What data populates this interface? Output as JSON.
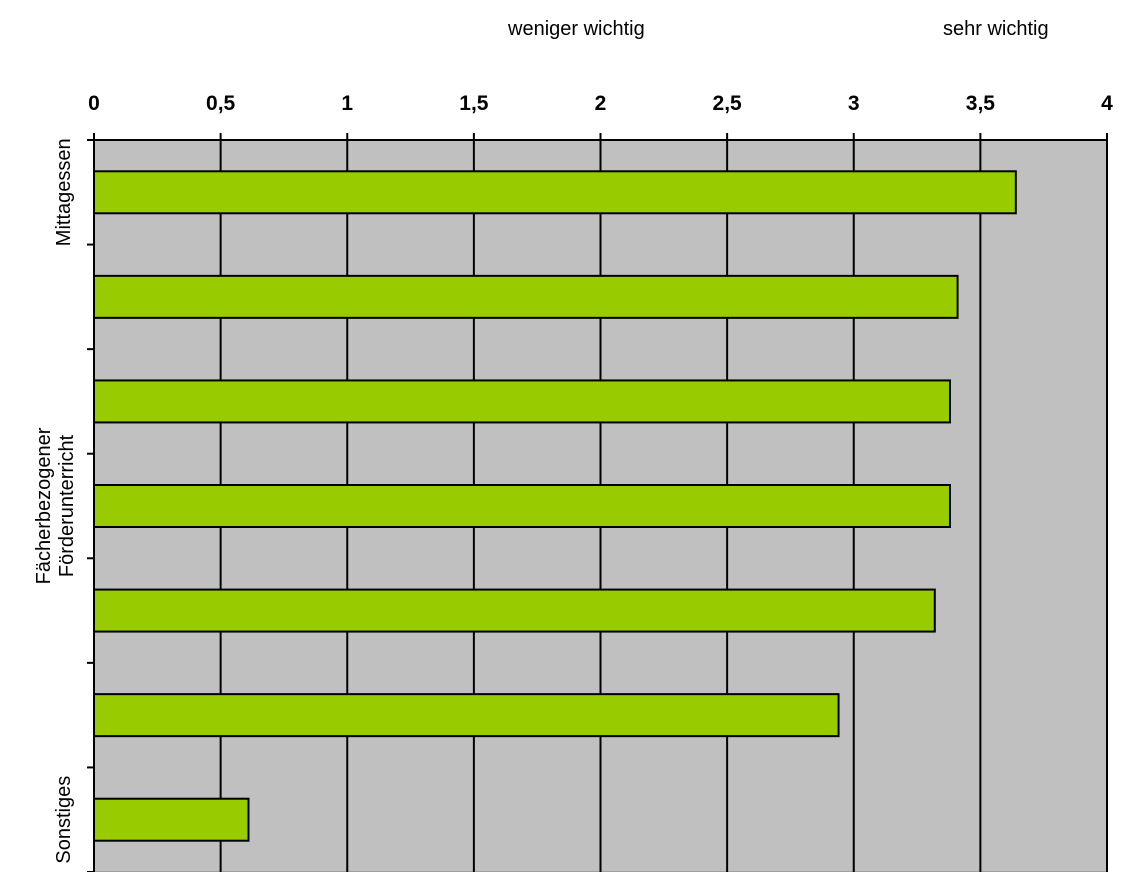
{
  "annotations": {
    "left": "weniger wichtig",
    "right": "sehr wichtig"
  },
  "chart_data": {
    "type": "bar",
    "orientation": "horizontal",
    "xlim": [
      0,
      4
    ],
    "x_ticks": [
      0,
      0.5,
      1,
      1.5,
      2,
      2.5,
      3,
      3.5,
      4
    ],
    "x_tick_labels": [
      "0",
      "0,5",
      "1",
      "1,5",
      "2",
      "2,5",
      "3",
      "3,5",
      "4"
    ],
    "x_axis_position": "top",
    "grid": "vertical",
    "plot_background": "#c0c0c0",
    "bar_color": "#99cc00",
    "categories": [
      "Mittagessen",
      "",
      "",
      "Fächerbezogener Förderunterricht",
      "",
      "",
      "Sonstiges"
    ],
    "values": [
      3.64,
      3.41,
      3.38,
      3.38,
      3.32,
      2.94,
      0.61
    ]
  }
}
